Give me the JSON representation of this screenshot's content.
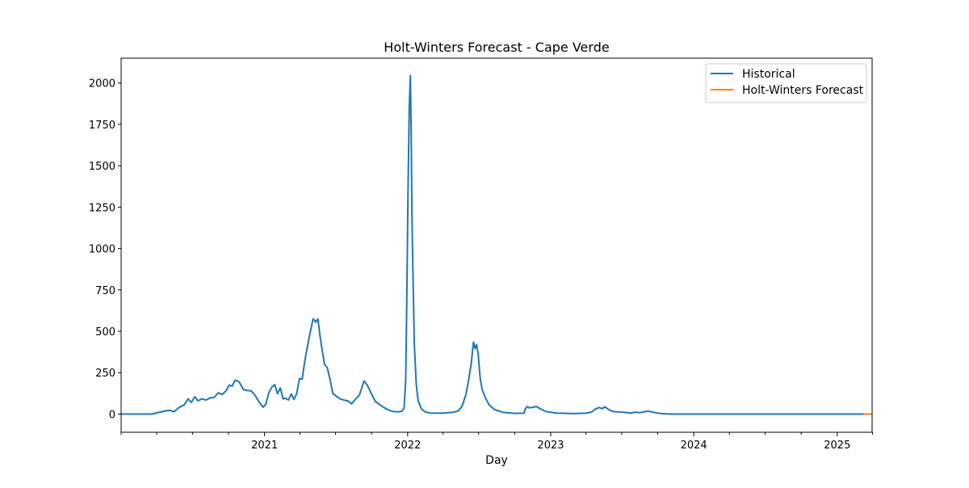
{
  "chart_data": {
    "type": "line",
    "title": "Holt-Winters Forecast - Cape Verde",
    "xlabel": "Day",
    "ylabel": "",
    "xlim": [
      "2020-01-01",
      "2025-03-31"
    ],
    "ylim": [
      -110,
      2150
    ],
    "x_ticks": [
      {
        "date": "2021-01-01",
        "label": "2021"
      },
      {
        "date": "2022-01-01",
        "label": "2022"
      },
      {
        "date": "2023-01-01",
        "label": "2023"
      },
      {
        "date": "2024-01-01",
        "label": "2024"
      },
      {
        "date": "2025-01-01",
        "label": "2025"
      }
    ],
    "x_minor_ticks": [
      "2020-01-01",
      "2020-04-01",
      "2020-07-01",
      "2020-10-01",
      "2021-04-01",
      "2021-07-01",
      "2021-10-01",
      "2022-04-01",
      "2022-07-01",
      "2022-10-01",
      "2023-04-01",
      "2023-07-01",
      "2023-10-01",
      "2024-04-01",
      "2024-07-01",
      "2024-10-01",
      "2025-04-01"
    ],
    "y_ticks": [
      0,
      250,
      500,
      750,
      1000,
      1250,
      1500,
      1750,
      2000
    ],
    "y_tick_labels": [
      "0",
      "250",
      "500",
      "750",
      "1000",
      "1250",
      "1500",
      "1750",
      "2000"
    ],
    "legend_position": "top-right",
    "series": [
      {
        "name": "Historical",
        "color": "#1f77b4",
        "points": [
          [
            "2020-01-01",
            0
          ],
          [
            "2020-03-20",
            0
          ],
          [
            "2020-04-10",
            12
          ],
          [
            "2020-04-25",
            20
          ],
          [
            "2020-05-05",
            22
          ],
          [
            "2020-05-15",
            14
          ],
          [
            "2020-05-28",
            40
          ],
          [
            "2020-06-10",
            55
          ],
          [
            "2020-06-20",
            92
          ],
          [
            "2020-06-28",
            70
          ],
          [
            "2020-07-07",
            105
          ],
          [
            "2020-07-15",
            80
          ],
          [
            "2020-07-25",
            92
          ],
          [
            "2020-08-05",
            85
          ],
          [
            "2020-08-15",
            98
          ],
          [
            "2020-08-25",
            100
          ],
          [
            "2020-09-05",
            128
          ],
          [
            "2020-09-15",
            118
          ],
          [
            "2020-09-25",
            142
          ],
          [
            "2020-10-03",
            175
          ],
          [
            "2020-10-10",
            168
          ],
          [
            "2020-10-18",
            205
          ],
          [
            "2020-10-28",
            195
          ],
          [
            "2020-11-08",
            148
          ],
          [
            "2020-11-18",
            142
          ],
          [
            "2020-11-28",
            140
          ],
          [
            "2020-12-08",
            112
          ],
          [
            "2020-12-18",
            72
          ],
          [
            "2020-12-28",
            42
          ],
          [
            "2021-01-04",
            58
          ],
          [
            "2021-01-12",
            130
          ],
          [
            "2021-01-20",
            165
          ],
          [
            "2021-01-27",
            178
          ],
          [
            "2021-02-03",
            122
          ],
          [
            "2021-02-10",
            158
          ],
          [
            "2021-02-17",
            92
          ],
          [
            "2021-02-24",
            95
          ],
          [
            "2021-03-03",
            85
          ],
          [
            "2021-03-10",
            122
          ],
          [
            "2021-03-17",
            88
          ],
          [
            "2021-03-24",
            125
          ],
          [
            "2021-03-31",
            215
          ],
          [
            "2021-04-07",
            210
          ],
          [
            "2021-04-14",
            325
          ],
          [
            "2021-04-21",
            415
          ],
          [
            "2021-04-28",
            500
          ],
          [
            "2021-05-05",
            575
          ],
          [
            "2021-05-12",
            555
          ],
          [
            "2021-05-17",
            575
          ],
          [
            "2021-05-22",
            480
          ],
          [
            "2021-05-27",
            400
          ],
          [
            "2021-06-03",
            300
          ],
          [
            "2021-06-10",
            280
          ],
          [
            "2021-06-17",
            210
          ],
          [
            "2021-06-24",
            125
          ],
          [
            "2021-07-02",
            110
          ],
          [
            "2021-07-12",
            92
          ],
          [
            "2021-07-22",
            85
          ],
          [
            "2021-08-01",
            80
          ],
          [
            "2021-08-11",
            62
          ],
          [
            "2021-08-21",
            90
          ],
          [
            "2021-08-31",
            115
          ],
          [
            "2021-09-07",
            165
          ],
          [
            "2021-09-12",
            200
          ],
          [
            "2021-09-20",
            175
          ],
          [
            "2021-10-01",
            120
          ],
          [
            "2021-10-11",
            75
          ],
          [
            "2021-10-21",
            58
          ],
          [
            "2021-10-31",
            42
          ],
          [
            "2021-11-10",
            28
          ],
          [
            "2021-11-20",
            18
          ],
          [
            "2021-11-30",
            14
          ],
          [
            "2021-12-10",
            14
          ],
          [
            "2021-12-18",
            18
          ],
          [
            "2021-12-23",
            35
          ],
          [
            "2021-12-27",
            200
          ],
          [
            "2021-12-30",
            700
          ],
          [
            "2022-01-02",
            1350
          ],
          [
            "2022-01-05",
            1850
          ],
          [
            "2022-01-08",
            2045
          ],
          [
            "2022-01-10",
            1700
          ],
          [
            "2022-01-12",
            1180
          ],
          [
            "2022-01-15",
            800
          ],
          [
            "2022-01-18",
            420
          ],
          [
            "2022-01-23",
            180
          ],
          [
            "2022-01-28",
            80
          ],
          [
            "2022-02-05",
            32
          ],
          [
            "2022-02-15",
            12
          ],
          [
            "2022-03-01",
            6
          ],
          [
            "2022-04-01",
            5
          ],
          [
            "2022-04-25",
            10
          ],
          [
            "2022-05-10",
            18
          ],
          [
            "2022-05-20",
            48
          ],
          [
            "2022-05-30",
            120
          ],
          [
            "2022-06-06",
            210
          ],
          [
            "2022-06-12",
            300
          ],
          [
            "2022-06-18",
            435
          ],
          [
            "2022-06-22",
            395
          ],
          [
            "2022-06-26",
            420
          ],
          [
            "2022-06-30",
            360
          ],
          [
            "2022-07-05",
            220
          ],
          [
            "2022-07-10",
            150
          ],
          [
            "2022-07-18",
            100
          ],
          [
            "2022-07-28",
            55
          ],
          [
            "2022-08-10",
            28
          ],
          [
            "2022-09-01",
            10
          ],
          [
            "2022-10-01",
            4
          ],
          [
            "2022-10-25",
            5
          ],
          [
            "2022-10-28",
            30
          ],
          [
            "2022-11-02",
            45
          ],
          [
            "2022-11-07",
            38
          ],
          [
            "2022-11-15",
            40
          ],
          [
            "2022-11-25",
            46
          ],
          [
            "2022-12-05",
            32
          ],
          [
            "2022-12-20",
            15
          ],
          [
            "2023-01-15",
            6
          ],
          [
            "2023-03-01",
            3
          ],
          [
            "2023-04-01",
            5
          ],
          [
            "2023-04-15",
            12
          ],
          [
            "2023-04-25",
            30
          ],
          [
            "2023-05-05",
            40
          ],
          [
            "2023-05-12",
            32
          ],
          [
            "2023-05-19",
            44
          ],
          [
            "2023-05-30",
            25
          ],
          [
            "2023-06-10",
            15
          ],
          [
            "2023-06-25",
            12
          ],
          [
            "2023-07-10",
            10
          ],
          [
            "2023-07-25",
            5
          ],
          [
            "2023-08-05",
            12
          ],
          [
            "2023-08-15",
            8
          ],
          [
            "2023-08-25",
            12
          ],
          [
            "2023-09-05",
            18
          ],
          [
            "2023-09-15",
            14
          ],
          [
            "2023-09-25",
            8
          ],
          [
            "2023-10-10",
            3
          ],
          [
            "2023-11-01",
            0
          ],
          [
            "2025-03-10",
            0
          ]
        ]
      },
      {
        "name": "Holt-Winters Forecast",
        "color": "#ff7f0e",
        "points": [
          [
            "2025-03-10",
            0
          ],
          [
            "2025-03-31",
            0
          ]
        ]
      }
    ]
  }
}
